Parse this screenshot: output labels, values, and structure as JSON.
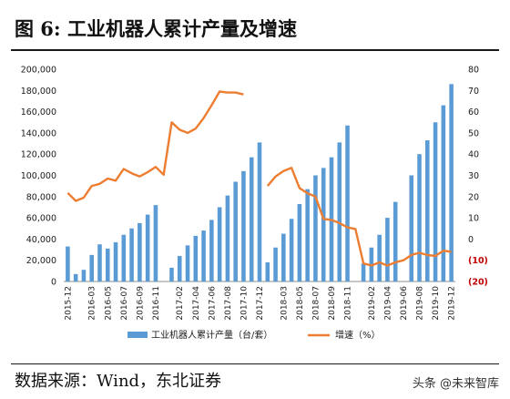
{
  "header": {
    "title": "图  6:  工业机器人累计产量及增速"
  },
  "footer": {
    "source": "数据来源：Wind，东北证券",
    "watermark": "头条 @未来智库"
  },
  "chart_data": {
    "type": "bar+line",
    "categories": [
      "2015-12",
      "2016-01",
      "2016-02",
      "2016-03",
      "2016-04",
      "2016-05",
      "2016-06",
      "2016-07",
      "2016-08",
      "2016-09",
      "2016-10",
      "2016-11",
      "2016-12",
      "2017-01",
      "2017-02",
      "2017-03",
      "2017-04",
      "2017-05",
      "2017-06",
      "2017-07",
      "2017-08",
      "2017-09",
      "2017-10",
      "2017-11",
      "2017-12",
      "2018-01",
      "2018-02",
      "2018-03",
      "2018-04",
      "2018-05",
      "2018-06",
      "2018-07",
      "2018-08",
      "2018-09",
      "2018-10",
      "2018-11",
      "2018-12",
      "2019-01",
      "2019-02",
      "2019-03",
      "2019-04",
      "2019-05",
      "2019-06",
      "2019-07",
      "2019-08",
      "2019-09",
      "2019-10",
      "2019-11",
      "2019-12"
    ],
    "x_tick_labels": [
      "2015-12",
      "2016-03",
      "2016-05",
      "2016-07",
      "2016-09",
      "2016-11",
      "2017-02",
      "2017-04",
      "2017-06",
      "2017-08",
      "2017-10",
      "2017-12",
      "2018-03",
      "2018-05",
      "2018-07",
      "2018-09",
      "2018-11",
      "2019-02",
      "2019-04",
      "2019-06",
      "2019-08",
      "2019-10",
      "2019-12"
    ],
    "series": [
      {
        "name": "工业机器人累计产量（台/套）",
        "kind": "bar",
        "axis": "left",
        "color": "#5b9bd5",
        "values": [
          32996,
          7000,
          11000,
          25000,
          35000,
          31000,
          37000,
          44000,
          50000,
          55000,
          63000,
          72000,
          null,
          13000,
          24000,
          34000,
          43000,
          48000,
          58000,
          70000,
          81000,
          94000,
          104000,
          117000,
          131000,
          18000,
          32000,
          45000,
          59000,
          73000,
          87000,
          100000,
          107000,
          117000,
          131000,
          147000,
          null,
          17000,
          32000,
          44000,
          60000,
          75000,
          null,
          100000,
          120000,
          133000,
          150000,
          166000,
          186000
        ]
      },
      {
        "name": "增速（%）",
        "kind": "line",
        "axis": "right",
        "color": "#ed7d31",
        "values": [
          21.7,
          18,
          19.5,
          25,
          26,
          28.5,
          27.5,
          33,
          31,
          29.5,
          31.5,
          34,
          30.3,
          55,
          51.5,
          50,
          52,
          57,
          63,
          69.5,
          69,
          69,
          68.1,
          null,
          null,
          25,
          29.5,
          32,
          33.5,
          24,
          21.5,
          20,
          9.5,
          9,
          7.5,
          5.5,
          4.7,
          -11.5,
          -12.5,
          -11,
          -12.5,
          -11,
          -10,
          -7.5,
          -6.5,
          -7.5,
          -8,
          -5.5,
          -6
        ]
      }
    ],
    "ylim_left": [
      0,
      200000
    ],
    "yticks_left": [
      "0",
      "20,000",
      "40,000",
      "60,000",
      "80,000",
      "100,000",
      "120,000",
      "140,000",
      "160,000",
      "180,000",
      "200,000"
    ],
    "ylim_right": [
      -20,
      80
    ],
    "yticks_right": [
      "(20)",
      "(10)",
      "0",
      "10",
      "20",
      "30",
      "40",
      "50",
      "60",
      "70",
      "80"
    ],
    "grid": false,
    "legend_position": "bottom"
  }
}
